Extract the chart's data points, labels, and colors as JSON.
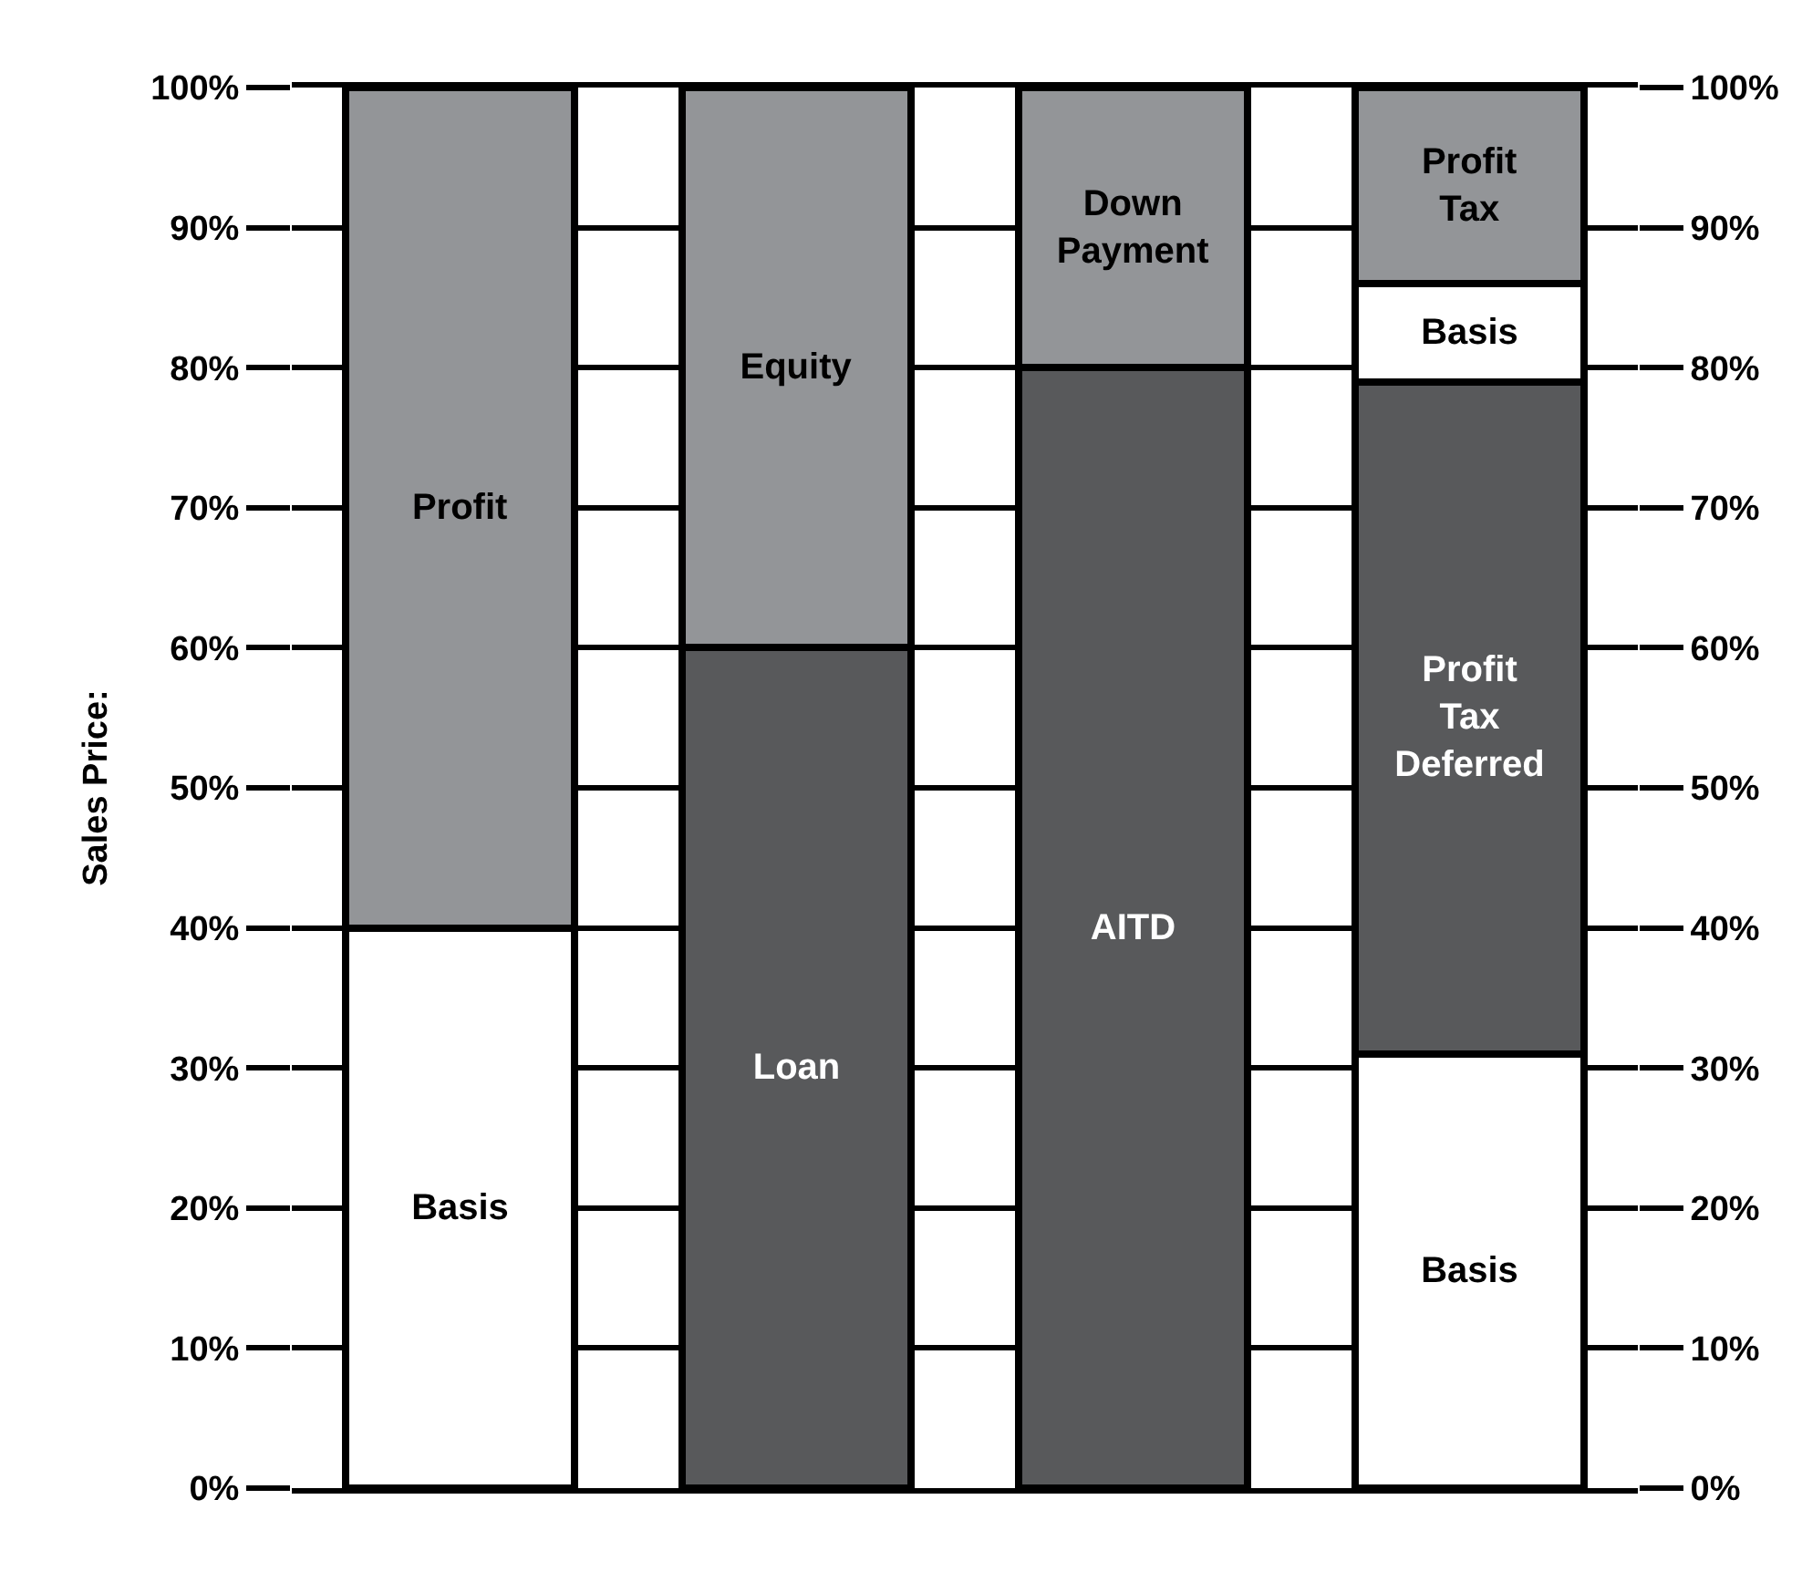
{
  "chart_data": {
    "type": "bar",
    "stacked": true,
    "ylabel": "Sales Price:",
    "categories": [
      null,
      null,
      null,
      null
    ],
    "series": [
      {
        "colors": [
          "#ffffff",
          "#58595b",
          "#58595b",
          "#ffffff"
        ],
        "values": [
          40,
          60,
          80,
          31
        ],
        "value_labels": [
          "Basis",
          "Loan",
          "AITD",
          "Basis"
        ]
      },
      {
        "colors": [
          "#939598",
          "#939598",
          "#939598",
          "#58595b"
        ],
        "values": [
          60,
          40,
          20,
          48
        ],
        "value_labels": [
          "Profit",
          "Equity",
          "Down\nPayment",
          "Profit\nTax\nDeferred"
        ]
      },
      {
        "colors": [
          null,
          null,
          null,
          "#ffffff"
        ],
        "values": [
          null,
          null,
          null,
          7
        ],
        "value_labels": [
          null,
          null,
          null,
          "Basis"
        ]
      },
      {
        "colors": [
          null,
          null,
          null,
          "#939598"
        ],
        "values": [
          null,
          null,
          null,
          14
        ],
        "value_labels": [
          null,
          null,
          null,
          "Profit\nTax"
        ]
      }
    ],
    "ylim": [
      0,
      100
    ],
    "yticks": [
      {
        "value": 0,
        "label": "0%"
      },
      {
        "value": 10,
        "label": "10%"
      },
      {
        "value": 20,
        "label": "20%"
      },
      {
        "value": 30,
        "label": "30%"
      },
      {
        "value": 40,
        "label": "40%"
      },
      {
        "value": 50,
        "label": "50%"
      },
      {
        "value": 60,
        "label": "60%"
      },
      {
        "value": 70,
        "label": "70%"
      },
      {
        "value": 80,
        "label": "80%"
      },
      {
        "value": 90,
        "label": "90%"
      },
      {
        "value": 100,
        "label": "100%"
      }
    ],
    "y2lim": [
      0,
      100
    ],
    "y2ticks": [
      {
        "value": 0,
        "label": "0%"
      },
      {
        "value": 10,
        "label": "10%"
      },
      {
        "value": 20,
        "label": "20%"
      },
      {
        "value": 30,
        "label": "30%"
      },
      {
        "value": 40,
        "label": "40%"
      },
      {
        "value": 50,
        "label": "50%"
      },
      {
        "value": 60,
        "label": "60%"
      },
      {
        "value": 70,
        "label": "70%"
      },
      {
        "value": 80,
        "label": "80%"
      },
      {
        "value": 90,
        "label": "90%"
      },
      {
        "value": 100,
        "label": "100%"
      }
    ],
    "grid": "y"
  }
}
